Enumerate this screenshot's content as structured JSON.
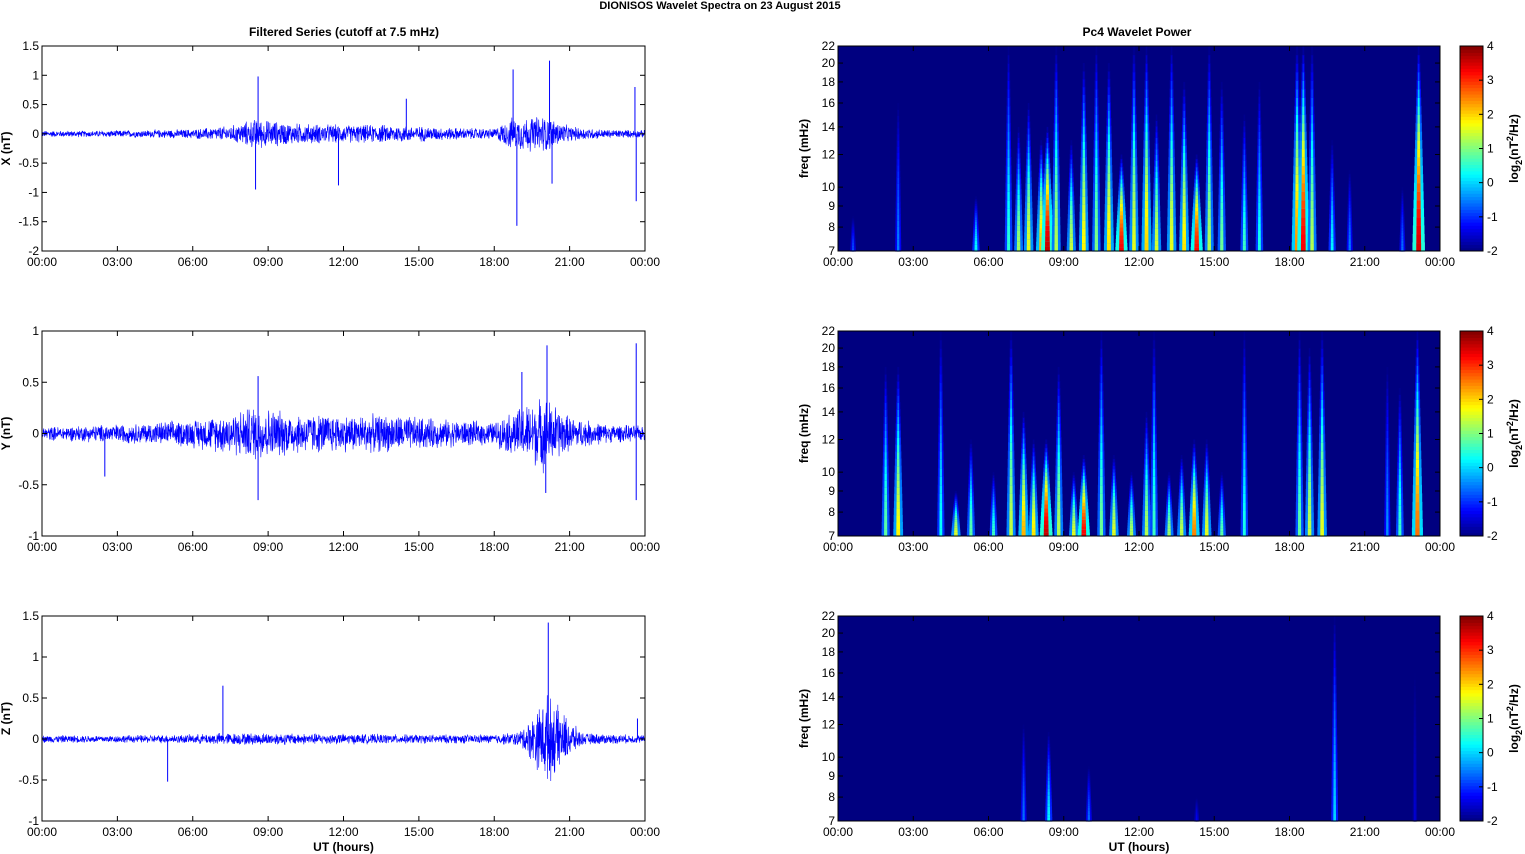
{
  "figure": {
    "title": "DIONISOS Wavelet Spectra on 23 August    2015",
    "left_column_title": "Filtered Series (cutoff at 7.5 mHz)",
    "right_column_title": "Pc4 Wavelet Power",
    "time_axis_label": "UT (hours)",
    "trace_color": "#0000ff",
    "colormap": "jet"
  },
  "chart_data": [
    {
      "type": "line",
      "panel": "X",
      "ylabel": "X (nT)",
      "xlabel": "",
      "xlim": [
        0,
        24
      ],
      "ylim": [
        -2,
        1.5
      ],
      "x_ticks": [
        "00:00",
        "03:00",
        "06:00",
        "09:00",
        "12:00",
        "15:00",
        "18:00",
        "21:00",
        "00:00"
      ],
      "y_ticks": [
        "1.5",
        "1",
        "0.5",
        "0",
        "-0.5",
        "-1",
        "-1.5",
        "-2"
      ],
      "y_tick_values": [
        1.5,
        1,
        0.5,
        0,
        -0.5,
        -1,
        -1.5,
        -2
      ],
      "noise_envelope": {
        "hours": [
          0,
          2,
          4,
          6,
          7.5,
          8.5,
          10,
          12,
          14,
          16,
          18,
          18.7,
          20,
          21,
          22.5,
          24
        ],
        "amplitude": [
          0.06,
          0.06,
          0.07,
          0.09,
          0.15,
          0.28,
          0.2,
          0.17,
          0.17,
          0.12,
          0.1,
          0.3,
          0.35,
          0.14,
          0.08,
          0.07
        ]
      },
      "spikes": [
        [
          8.6,
          0.98
        ],
        [
          8.5,
          -0.95
        ],
        [
          11.8,
          -0.88
        ],
        [
          14.5,
          0.6
        ],
        [
          18.9,
          -1.57
        ],
        [
          18.75,
          1.1
        ],
        [
          20.2,
          1.25
        ],
        [
          20.3,
          -0.85
        ],
        [
          23.6,
          0.8
        ],
        [
          23.65,
          -1.15
        ]
      ]
    },
    {
      "type": "line",
      "panel": "Y",
      "ylabel": "Y (nT)",
      "xlabel": "",
      "xlim": [
        0,
        24
      ],
      "ylim": [
        -1,
        1
      ],
      "x_ticks": [
        "00:00",
        "03:00",
        "06:00",
        "09:00",
        "12:00",
        "15:00",
        "18:00",
        "21:00",
        "00:00"
      ],
      "y_ticks": [
        "1",
        "0.5",
        "0",
        "-0.5",
        "-1"
      ],
      "y_tick_values": [
        1,
        0.5,
        0,
        -0.5,
        -1
      ],
      "noise_envelope": {
        "hours": [
          0,
          2,
          4,
          6,
          7.5,
          8.5,
          10,
          12,
          14,
          16,
          18,
          18.8,
          20,
          21,
          22.5,
          24
        ],
        "amplitude": [
          0.07,
          0.09,
          0.11,
          0.15,
          0.22,
          0.3,
          0.22,
          0.2,
          0.2,
          0.15,
          0.12,
          0.25,
          0.4,
          0.18,
          0.1,
          0.08
        ]
      },
      "spikes": [
        [
          2.5,
          -0.42
        ],
        [
          8.6,
          -0.65
        ],
        [
          8.6,
          0.56
        ],
        [
          19.1,
          0.6
        ],
        [
          20.1,
          0.86
        ],
        [
          20.05,
          -0.58
        ],
        [
          23.65,
          0.88
        ],
        [
          23.65,
          -0.65
        ]
      ]
    },
    {
      "type": "line",
      "panel": "Z",
      "ylabel": "Z (nT)",
      "xlabel": "UT (hours)",
      "xlim": [
        0,
        24
      ],
      "ylim": [
        -1,
        1.5
      ],
      "x_ticks": [
        "00:00",
        "03:00",
        "06:00",
        "09:00",
        "12:00",
        "15:00",
        "18:00",
        "21:00",
        "00:00"
      ],
      "y_ticks": [
        "1.5",
        "1",
        "0.5",
        "0",
        "-0.5",
        "-1"
      ],
      "y_tick_values": [
        1.5,
        1,
        0.5,
        0,
        -0.5,
        -1
      ],
      "noise_envelope": {
        "hours": [
          0,
          3,
          6,
          7,
          9,
          12,
          15,
          18,
          19,
          19.5,
          20.1,
          21,
          21.5,
          24
        ],
        "amplitude": [
          0.05,
          0.05,
          0.06,
          0.08,
          0.08,
          0.07,
          0.06,
          0.06,
          0.1,
          0.3,
          0.6,
          0.25,
          0.08,
          0.05
        ]
      },
      "spikes": [
        [
          5.0,
          -0.52
        ],
        [
          7.2,
          0.65
        ],
        [
          20.15,
          1.42
        ],
        [
          20.2,
          -0.38
        ],
        [
          23.7,
          0.25
        ]
      ]
    },
    {
      "type": "heatmap",
      "panel": "X",
      "ylabel": "freq (mHz)",
      "xlabel": "",
      "colorbar_label": "log2(nT^2/Hz)",
      "clim": [
        -2,
        4
      ],
      "colorbar_ticks": [
        "4",
        "3",
        "2",
        "1",
        "0",
        "-1",
        "-2"
      ],
      "xlim": [
        0,
        24
      ],
      "ylim": [
        7,
        22
      ],
      "y_scale": "log",
      "x_ticks": [
        "00:00",
        "03:00",
        "06:00",
        "09:00",
        "12:00",
        "15:00",
        "18:00",
        "21:00",
        "00:00"
      ],
      "y_ticks": [
        "22",
        "20",
        "18",
        "16",
        "14",
        "12",
        "10",
        "9",
        "8",
        "7"
      ],
      "y_tick_values": [
        22,
        20,
        18,
        16,
        14,
        12,
        10,
        9,
        8,
        7
      ],
      "background": -2,
      "streaks": [
        {
          "hour": 0.6,
          "f_lo": 7,
          "f_hi": 8.5,
          "peak": -0.8
        },
        {
          "hour": 2.4,
          "f_lo": 7,
          "f_hi": 16,
          "peak": -0.5
        },
        {
          "hour": 5.5,
          "f_lo": 7,
          "f_hi": 9.5,
          "peak": 0.3
        },
        {
          "hour": 6.8,
          "f_lo": 7,
          "f_hi": 22,
          "peak": 0.5
        },
        {
          "hour": 7.2,
          "f_lo": 7,
          "f_hi": 14,
          "peak": 1.2
        },
        {
          "hour": 7.6,
          "f_lo": 7,
          "f_hi": 16,
          "peak": 1.6
        },
        {
          "hour": 8.1,
          "f_lo": 7,
          "f_hi": 13,
          "peak": 2.2
        },
        {
          "hour": 8.35,
          "f_lo": 7,
          "f_hi": 14,
          "peak": 3.6
        },
        {
          "hour": 8.7,
          "f_lo": 7,
          "f_hi": 22,
          "peak": 1.3
        },
        {
          "hour": 9.3,
          "f_lo": 7,
          "f_hi": 13,
          "peak": 1.4
        },
        {
          "hour": 9.8,
          "f_lo": 7,
          "f_hi": 20,
          "peak": 1.8
        },
        {
          "hour": 10.3,
          "f_lo": 7,
          "f_hi": 22,
          "peak": 1.0
        },
        {
          "hour": 10.8,
          "f_lo": 7,
          "f_hi": 20,
          "peak": 1.9
        },
        {
          "hour": 11.3,
          "f_lo": 7,
          "f_hi": 12,
          "peak": 3.3
        },
        {
          "hour": 11.8,
          "f_lo": 7,
          "f_hi": 22,
          "peak": 1.6
        },
        {
          "hour": 12.3,
          "f_lo": 7,
          "f_hi": 22,
          "peak": 2.0
        },
        {
          "hour": 12.7,
          "f_lo": 7,
          "f_hi": 15,
          "peak": 1.5
        },
        {
          "hour": 13.3,
          "f_lo": 7,
          "f_hi": 22,
          "peak": 1.6
        },
        {
          "hour": 13.8,
          "f_lo": 7,
          "f_hi": 18,
          "peak": 1.9
        },
        {
          "hour": 14.3,
          "f_lo": 7,
          "f_hi": 12,
          "peak": 3.2
        },
        {
          "hour": 14.8,
          "f_lo": 7,
          "f_hi": 22,
          "peak": 1.3
        },
        {
          "hour": 15.3,
          "f_lo": 7,
          "f_hi": 18,
          "peak": 0.9
        },
        {
          "hour": 16.2,
          "f_lo": 7,
          "f_hi": 15,
          "peak": 0.6
        },
        {
          "hour": 16.8,
          "f_lo": 7,
          "f_hi": 18,
          "peak": 0.4
        },
        {
          "hour": 18.3,
          "f_lo": 7,
          "f_hi": 22,
          "peak": 2.4
        },
        {
          "hour": 18.55,
          "f_lo": 7,
          "f_hi": 22,
          "peak": 3.3
        },
        {
          "hour": 18.9,
          "f_lo": 7,
          "f_hi": 22,
          "peak": 1.3
        },
        {
          "hour": 19.7,
          "f_lo": 7,
          "f_hi": 13,
          "peak": 0.2
        },
        {
          "hour": 20.4,
          "f_lo": 7,
          "f_hi": 11,
          "peak": -0.5
        },
        {
          "hour": 22.5,
          "f_lo": 7,
          "f_hi": 10,
          "peak": -0.6
        },
        {
          "hour": 23.15,
          "f_lo": 7,
          "f_hi": 22,
          "peak": 3.5
        }
      ]
    },
    {
      "type": "heatmap",
      "panel": "Y",
      "ylabel": "freq (mHz)",
      "xlabel": "",
      "colorbar_label": "log2(nT^2/Hz)",
      "clim": [
        -2,
        4
      ],
      "colorbar_ticks": [
        "4",
        "3",
        "2",
        "1",
        "0",
        "-1",
        "-2"
      ],
      "xlim": [
        0,
        24
      ],
      "ylim": [
        7,
        22
      ],
      "y_scale": "log",
      "x_ticks": [
        "00:00",
        "03:00",
        "06:00",
        "09:00",
        "12:00",
        "15:00",
        "18:00",
        "21:00",
        "00:00"
      ],
      "y_ticks": [
        "22",
        "20",
        "18",
        "16",
        "14",
        "12",
        "10",
        "9",
        "8",
        "7"
      ],
      "y_tick_values": [
        22,
        20,
        18,
        16,
        14,
        12,
        10,
        9,
        8,
        7
      ],
      "background": -2,
      "streaks": [
        {
          "hour": 1.9,
          "f_lo": 7,
          "f_hi": 18,
          "peak": 0.8
        },
        {
          "hour": 2.4,
          "f_lo": 7,
          "f_hi": 18,
          "peak": 1.8
        },
        {
          "hour": 4.1,
          "f_lo": 7,
          "f_hi": 22,
          "peak": 0.3
        },
        {
          "hour": 4.7,
          "f_lo": 7,
          "f_hi": 9,
          "peak": 1.6
        },
        {
          "hour": 5.3,
          "f_lo": 7,
          "f_hi": 12,
          "peak": 0.8
        },
        {
          "hour": 6.2,
          "f_lo": 7,
          "f_hi": 10,
          "peak": 0.6
        },
        {
          "hour": 6.9,
          "f_lo": 7,
          "f_hi": 22,
          "peak": 1.4
        },
        {
          "hour": 7.4,
          "f_lo": 7,
          "f_hi": 14,
          "peak": 2.2
        },
        {
          "hour": 7.8,
          "f_lo": 7,
          "f_hi": 12,
          "peak": 1.9
        },
        {
          "hour": 8.3,
          "f_lo": 7,
          "f_hi": 12,
          "peak": 3.6
        },
        {
          "hour": 8.8,
          "f_lo": 7,
          "f_hi": 18,
          "peak": 1.3
        },
        {
          "hour": 9.4,
          "f_lo": 7,
          "f_hi": 10,
          "peak": 1.6
        },
        {
          "hour": 9.8,
          "f_lo": 7,
          "f_hi": 11,
          "peak": 3.3
        },
        {
          "hour": 10.5,
          "f_lo": 7,
          "f_hi": 22,
          "peak": 0.9
        },
        {
          "hour": 11.0,
          "f_lo": 7,
          "f_hi": 11,
          "peak": 1.6
        },
        {
          "hour": 11.7,
          "f_lo": 7,
          "f_hi": 10,
          "peak": 1.3
        },
        {
          "hour": 12.3,
          "f_lo": 7,
          "f_hi": 14,
          "peak": 1.3
        },
        {
          "hour": 12.6,
          "f_lo": 7,
          "f_hi": 22,
          "peak": 0.6
        },
        {
          "hour": 13.2,
          "f_lo": 7,
          "f_hi": 10,
          "peak": 1.2
        },
        {
          "hour": 13.7,
          "f_lo": 7,
          "f_hi": 11,
          "peak": 1.4
        },
        {
          "hour": 14.2,
          "f_lo": 7,
          "f_hi": 12,
          "peak": 2.5
        },
        {
          "hour": 14.7,
          "f_lo": 7,
          "f_hi": 12,
          "peak": 1.6
        },
        {
          "hour": 15.3,
          "f_lo": 7,
          "f_hi": 10,
          "peak": 0.8
        },
        {
          "hour": 16.2,
          "f_lo": 7,
          "f_hi": 22,
          "peak": 0.4
        },
        {
          "hour": 18.4,
          "f_lo": 7,
          "f_hi": 22,
          "peak": 0.8
        },
        {
          "hour": 18.8,
          "f_lo": 7,
          "f_hi": 20,
          "peak": 1.4
        },
        {
          "hour": 19.3,
          "f_lo": 7,
          "f_hi": 22,
          "peak": 1.6
        },
        {
          "hour": 21.9,
          "f_lo": 7,
          "f_hi": 18,
          "peak": -0.4
        },
        {
          "hour": 22.4,
          "f_lo": 7,
          "f_hi": 16,
          "peak": 0.6
        },
        {
          "hour": 23.1,
          "f_lo": 7,
          "f_hi": 22,
          "peak": 2.6
        }
      ]
    },
    {
      "type": "heatmap",
      "panel": "Z",
      "ylabel": "freq (mHz)",
      "xlabel": "UT (hours)",
      "colorbar_label": "log2(nT^2/Hz)",
      "clim": [
        -2,
        4
      ],
      "colorbar_ticks": [
        "4",
        "3",
        "2",
        "1",
        "0",
        "-1",
        "-2"
      ],
      "xlim": [
        0,
        24
      ],
      "ylim": [
        7,
        22
      ],
      "y_scale": "log",
      "x_ticks": [
        "00:00",
        "03:00",
        "06:00",
        "09:00",
        "12:00",
        "15:00",
        "18:00",
        "21:00",
        "00:00"
      ],
      "y_ticks": [
        "22",
        "20",
        "18",
        "16",
        "14",
        "12",
        "10",
        "9",
        "8",
        "7"
      ],
      "y_tick_values": [
        22,
        20,
        18,
        16,
        14,
        12,
        10,
        9,
        8,
        7
      ],
      "background": -2,
      "streaks": [
        {
          "hour": 7.4,
          "f_lo": 7,
          "f_hi": 12,
          "peak": -0.6
        },
        {
          "hour": 8.4,
          "f_lo": 7,
          "f_hi": 11.5,
          "peak": 0.2
        },
        {
          "hour": 10.0,
          "f_lo": 7,
          "f_hi": 9.5,
          "peak": -0.6
        },
        {
          "hour": 14.3,
          "f_lo": 7,
          "f_hi": 8,
          "peak": -1.3
        },
        {
          "hour": 19.8,
          "f_lo": 7,
          "f_hi": 22,
          "peak": 0.0
        },
        {
          "hour": 23.0,
          "f_lo": 7,
          "f_hi": 16,
          "peak": -1.5
        }
      ]
    }
  ]
}
